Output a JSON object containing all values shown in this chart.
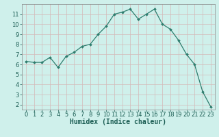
{
  "x": [
    0,
    1,
    2,
    3,
    4,
    5,
    6,
    7,
    8,
    9,
    10,
    11,
    12,
    13,
    14,
    15,
    16,
    17,
    18,
    19,
    20,
    21,
    22,
    23
  ],
  "y": [
    6.3,
    6.2,
    6.2,
    6.7,
    5.7,
    6.8,
    7.2,
    7.8,
    8.0,
    9.0,
    9.8,
    11.0,
    11.2,
    11.5,
    10.5,
    11.0,
    11.5,
    10.0,
    9.5,
    8.4,
    7.0,
    6.0,
    3.3,
    1.8
  ],
  "xlim": [
    -0.5,
    23.5
  ],
  "ylim": [
    1.5,
    12.0
  ],
  "yticks": [
    2,
    3,
    4,
    5,
    6,
    7,
    8,
    9,
    10,
    11
  ],
  "xticks": [
    0,
    1,
    2,
    3,
    4,
    5,
    6,
    7,
    8,
    9,
    10,
    11,
    12,
    13,
    14,
    15,
    16,
    17,
    18,
    19,
    20,
    21,
    22,
    23
  ],
  "xlabel": "Humidex (Indice chaleur)",
  "line_color": "#2e7d6e",
  "marker_color": "#2e7d6e",
  "bg_color": "#cff0eb",
  "grid_color": "#c0deda",
  "xlabel_fontsize": 7,
  "tick_fontsize": 6
}
